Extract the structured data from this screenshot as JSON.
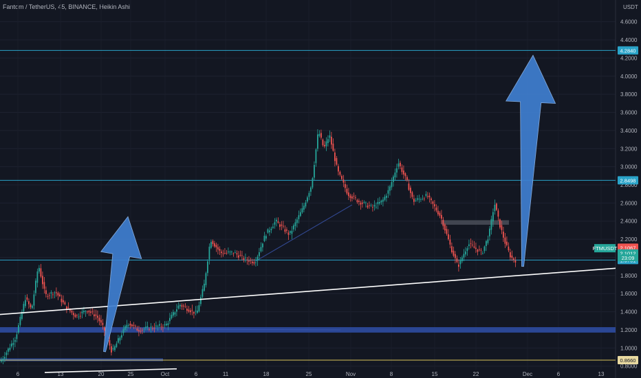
{
  "header": {
    "title": "Fantom / TetherUS, 45, BINANCE, Heikin Ashi"
  },
  "colors": {
    "background": "#131722",
    "up": "#26a69a",
    "down": "#ef5350",
    "levels": "#2aa3c8",
    "support_zone": "#2f4fa8",
    "trendline": "#ffffff",
    "arrow": "#3f7fd0",
    "yellow_line": "#d8c35a"
  },
  "chart_data": {
    "type": "candlestick",
    "currency": "USDT",
    "ylim": [
      0.76,
      4.84
    ],
    "y_ticks": [
      "0.8000",
      "1.0000",
      "1.2000",
      "1.4000",
      "1.6000",
      "1.8000",
      "2.0000",
      "2.2000",
      "2.4000",
      "2.6000",
      "2.8000",
      "3.0000",
      "3.2000",
      "3.4000",
      "3.6000",
      "3.8000",
      "4.0000",
      "4.2000",
      "4.4000",
      "4.6000"
    ],
    "x_ticks": [
      "6",
      "13",
      "20",
      "25",
      "Oct",
      "6",
      "11",
      "18",
      "25",
      "Nov",
      "8",
      "15",
      "22",
      "Dec",
      "6",
      "13"
    ],
    "price_path": [
      [
        0,
        0.85
      ],
      [
        22,
        1.12
      ],
      [
        36,
        1.55
      ],
      [
        45,
        1.42
      ],
      [
        55,
        1.92
      ],
      [
        65,
        1.58
      ],
      [
        80,
        1.62
      ],
      [
        95,
        1.45
      ],
      [
        110,
        1.35
      ],
      [
        125,
        1.42
      ],
      [
        140,
        1.35
      ],
      [
        152,
        1.18
      ],
      [
        162,
        0.95
      ],
      [
        172,
        1.1
      ],
      [
        185,
        1.28
      ],
      [
        200,
        1.2
      ],
      [
        215,
        1.22
      ],
      [
        240,
        1.25
      ],
      [
        260,
        1.48
      ],
      [
        285,
        1.38
      ],
      [
        296,
        1.7
      ],
      [
        305,
        2.2
      ],
      [
        320,
        2.05
      ],
      [
        340,
        2.05
      ],
      [
        355,
        1.98
      ],
      [
        370,
        1.95
      ],
      [
        385,
        2.25
      ],
      [
        400,
        2.4
      ],
      [
        420,
        2.25
      ],
      [
        440,
        2.55
      ],
      [
        452,
        2.8
      ],
      [
        462,
        3.4
      ],
      [
        470,
        3.2
      ],
      [
        478,
        3.35
      ],
      [
        490,
        2.95
      ],
      [
        505,
        2.7
      ],
      [
        520,
        2.62
      ],
      [
        540,
        2.55
      ],
      [
        555,
        2.62
      ],
      [
        565,
        2.75
      ],
      [
        578,
        3.05
      ],
      [
        590,
        2.85
      ],
      [
        600,
        2.62
      ],
      [
        620,
        2.68
      ],
      [
        640,
        2.45
      ],
      [
        655,
        2.1
      ],
      [
        665,
        1.9
      ],
      [
        680,
        2.15
      ],
      [
        700,
        2.05
      ],
      [
        710,
        2.25
      ],
      [
        718,
        2.6
      ],
      [
        726,
        2.35
      ],
      [
        734,
        2.15
      ],
      [
        742,
        2.0
      ],
      [
        750,
        1.96
      ]
    ],
    "levels": [
      {
        "price": 4.284,
        "label": "4.2840"
      },
      {
        "price": 2.8498,
        "label": "2.8498"
      },
      {
        "price": 1.9701,
        "label": "1.9701"
      }
    ],
    "yellow_level": {
      "price": 0.866,
      "label": "0.8660"
    },
    "price_tags": [
      {
        "price": 2.1067,
        "label": "2.1067",
        "color": "#ef5350"
      },
      {
        "price": 2.044,
        "label": "2.1012",
        "color": "#26a69a"
      }
    ],
    "symbol_tag": {
      "label": "FTMUSDT",
      "price": 2.1012
    },
    "countdown": {
      "label": "23:09",
      "price": 1.995
    },
    "support_zones": [
      {
        "x0": 0,
        "x1": 895,
        "y0": 1.17,
        "y1": 1.23
      },
      {
        "x0": 0,
        "x1": 237,
        "y0": 0.855,
        "y1": 0.885
      }
    ],
    "gray_zone": {
      "x0": 642,
      "x1": 740,
      "y0": 2.36,
      "y1": 2.41
    },
    "trendline": {
      "x0": 0,
      "y0": 1.37,
      "x1": 895,
      "y1": 1.88
    },
    "lower_line": {
      "x0": 65,
      "y0": 0.73,
      "x1": 257,
      "y1": 0.77
    },
    "faint_lines": [
      {
        "x0": 372,
        "y0": 1.96,
        "x1": 512,
        "y1": 2.58
      },
      {
        "x0": 210,
        "y0": 1.21,
        "x1": 495,
        "y1": 1.2
      }
    ],
    "arrows": [
      {
        "tail_x": 152,
        "tail_y": 0.96,
        "tip_x": 186,
        "tip_y": 2.45,
        "width": 30
      },
      {
        "tail_x": 760,
        "tail_y": 1.9,
        "tip_x": 775,
        "tip_y": 4.23,
        "width": 36
      }
    ]
  }
}
